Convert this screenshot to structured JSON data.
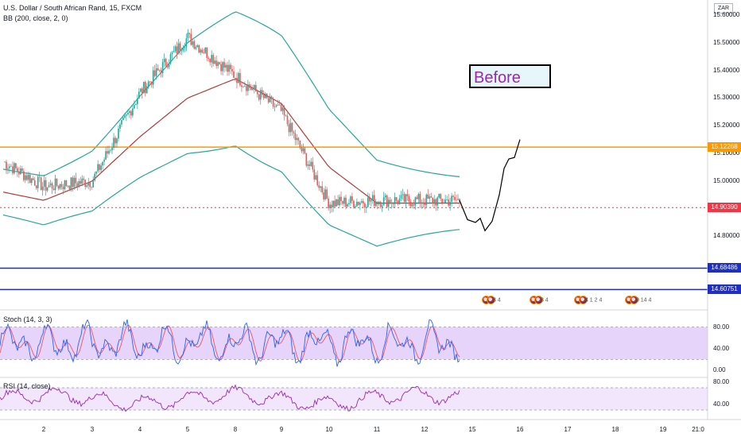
{
  "header": {
    "symbol_line": "U.S. Dollar / South African Rand, 15, FXCM",
    "bb_line": "BB (200, close, 2, 0)",
    "currency_badge": "ZAR"
  },
  "annotation": {
    "label": "Before"
  },
  "price_axis": {
    "ticks": [
      "15.60000",
      "15.50000",
      "15.40000",
      "15.30000",
      "15.20000",
      "15.10000",
      "15.00000",
      "14.80000"
    ],
    "levels": [
      {
        "label": "15.12268",
        "value": 15.12268,
        "color": "#ff9800"
      },
      {
        "label": "14.90390",
        "value": 14.9039,
        "color": "#f23645"
      },
      {
        "label": "14.68486",
        "value": 14.68486,
        "color": "#1f2fbf"
      },
      {
        "label": "14.60751",
        "value": 14.60751,
        "color": "#1f2fbf"
      }
    ]
  },
  "x_axis": {
    "labels": [
      "2",
      "3",
      "4",
      "5",
      "8",
      "9",
      "10",
      "11",
      "12",
      "15",
      "16",
      "17",
      "18",
      "19",
      "21:0"
    ]
  },
  "events": [
    {
      "text": "3 4"
    },
    {
      "text": "8 4"
    },
    {
      "text": "4 1 2 4"
    },
    {
      "text": "9 14 4"
    }
  ],
  "stoch": {
    "label": "Stoch (14, 3, 3)",
    "ticks": [
      "80.00",
      "40.00",
      "0.00"
    ],
    "upper": 80,
    "lower": 20
  },
  "rsi": {
    "label": "RSI (14, close)",
    "ticks": [
      "80.00",
      "40.00"
    ],
    "upper": 70,
    "lower": 30
  },
  "chart_data": {
    "type": "line",
    "title": "U.S. Dollar / South African Rand, 15, FXCM",
    "ylim": [
      14.6,
      15.6
    ],
    "x": [
      "2",
      "3",
      "4",
      "5",
      "8",
      "9",
      "10",
      "11",
      "12"
    ],
    "series": [
      {
        "name": "",
        "values": [
          15.07,
          14.98,
          15.0,
          15.32,
          15.52,
          15.38,
          15.25,
          14.92,
          14.93
        ]
      },
      {
        "name": "BB (200, close, 2, 0)",
        "values": [
          14.96,
          14.93,
          15.0,
          15.16,
          15.3,
          15.37,
          15.28,
          15.05,
          14.92
        ]
      }
    ],
    "horizontal_levels": [
      15.12268,
      14.9039,
      14.68486,
      14.60751
    ],
    "projection": [
      14.93,
      14.85,
      14.82,
      14.95,
      15.08,
      15.15
    ]
  }
}
